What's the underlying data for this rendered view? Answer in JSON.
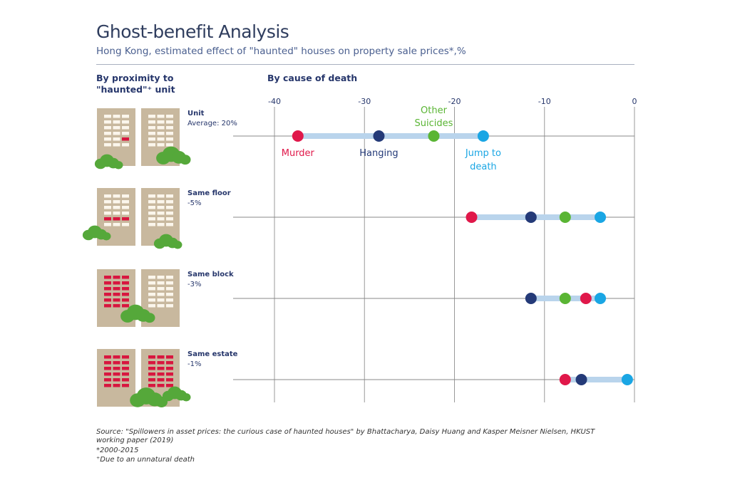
{
  "title": "Ghost-benefit Analysis",
  "subtitle": "Hong Kong, estimated effect of \"haunted\" houses on property sale prices*,%",
  "section_left": "By proximity to \"haunted\"⁺ unit",
  "section_right": "By cause of death",
  "footnotes": {
    "source": "Source: \"Spillowers in asset prices: the curious case of haunted houses\" by Bhattacharya, Daisy Huang and Kasper Meisner Nielsen, HKUST working paper (2019)",
    "note1": "*2000-2015",
    "note2": "⁺Due to an unnatural death"
  },
  "colors": {
    "Murder": "#e0184a",
    "Hanging": "#243a78",
    "Other Suicides": "#5ab534",
    "Jump to death": "#1aa6e4",
    "range_bar": "#b9d4ec",
    "building": "#c8b89e",
    "window": "#fbf6ec",
    "highlight_window": "#d8163f",
    "tree": "#55a83a"
  },
  "chart_data": {
    "type": "scatter",
    "title": "By cause of death",
    "xlabel": "",
    "ylabel": "",
    "xlim": [
      -40,
      0
    ],
    "xticks": [
      -40,
      -30,
      -20,
      -10,
      0
    ],
    "tick_labels": [
      "-40",
      "-30",
      "-20",
      "-10",
      "0"
    ],
    "grid": true,
    "categories": [
      "Unit",
      "Same floor",
      "Same block",
      "Same estate"
    ],
    "category_notes": [
      "Average: 20%",
      "-5%",
      "-3%",
      "-1%"
    ],
    "series": [
      {
        "name": "Murder",
        "label": "Murder",
        "values": [
          -37.4,
          -18.1,
          -5.4,
          -7.7
        ]
      },
      {
        "name": "Hanging",
        "label": "Hanging",
        "values": [
          -28.4,
          -11.5,
          -11.5,
          -5.9
        ]
      },
      {
        "name": "Other Suicides",
        "label": "Other Suicides",
        "values": [
          -22.3,
          -7.7,
          -7.7,
          null
        ]
      },
      {
        "name": "Jump to death",
        "label": "Jump to death",
        "values": [
          -16.8,
          -3.8,
          -3.8,
          -0.8
        ]
      }
    ]
  }
}
